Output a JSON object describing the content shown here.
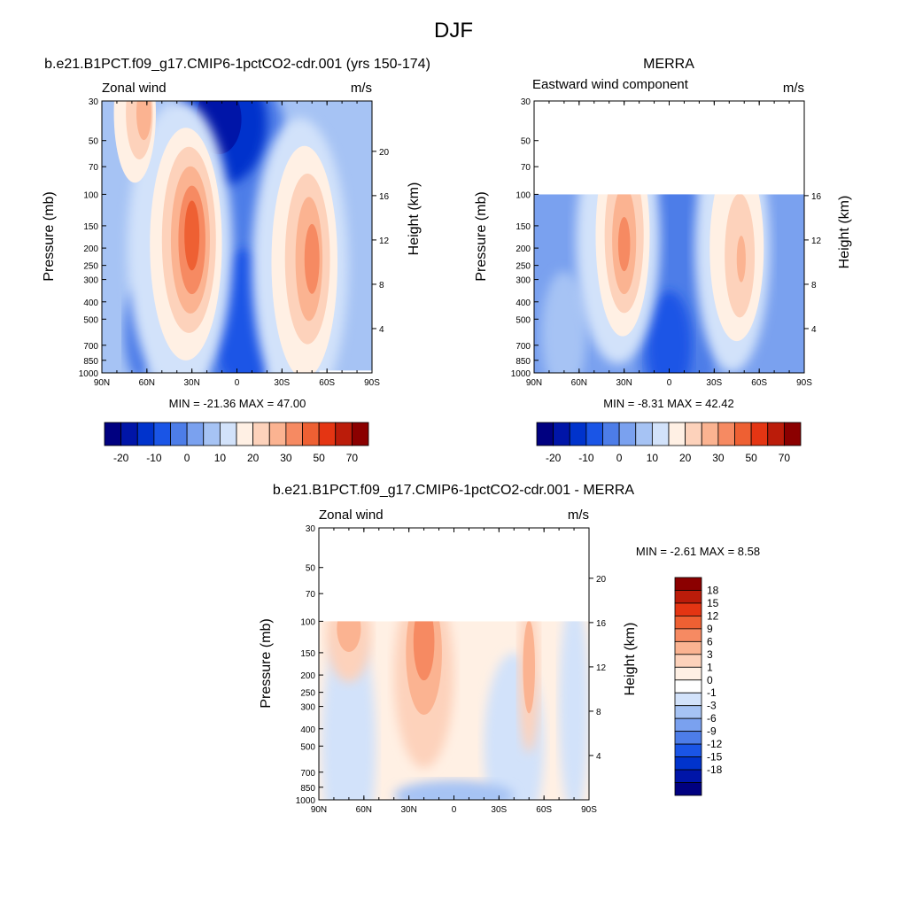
{
  "page_title": "DJF",
  "colors": {
    "model_levels": [
      "#000080",
      "#0015a8",
      "#0033cc",
      "#1a55e6",
      "#4d7de8",
      "#7aa1ef",
      "#a6c3f4",
      "#d2e2fa",
      "#fff0e4",
      "#fdd2bb",
      "#fbb391",
      "#f68a62",
      "#ee6033",
      "#e43513",
      "#bb1c0a",
      "#8b0000"
    ],
    "diff_levels": [
      "#000080",
      "#0015a8",
      "#0033cc",
      "#1a55e6",
      "#4d7de8",
      "#7aa1ef",
      "#a6c3f4",
      "#d2e2fa",
      "#ffffff",
      "#fff0e4",
      "#fdd2bb",
      "#fbb391",
      "#f68a62",
      "#ee6033",
      "#e43513",
      "#bb1c0a",
      "#8b0000"
    ]
  },
  "chart_data": [
    {
      "type": "heatmap",
      "title": "b.e21.B1PCT.f09_g17.CMIP6-1pctCO2-cdr.001 (yrs 150-174)",
      "left_string": "Zonal wind",
      "right_string": "m/s",
      "ylabel": "Pressure (mb)",
      "y2label": "Height (km)",
      "xticks": [
        "90N",
        "60N",
        "30N",
        "0",
        "30S",
        "60S",
        "90S"
      ],
      "yticks": [
        "30",
        "50",
        "70",
        "100",
        "150",
        "200",
        "250",
        "300",
        "400",
        "500",
        "700",
        "850",
        "1000"
      ],
      "y2ticks": [
        "20",
        "16",
        "12",
        "8",
        "4"
      ],
      "ylim": [
        1000,
        30
      ],
      "data_top_mb": 30,
      "min_max_text": "MIN = -21.36  MAX =  47.00",
      "min": -21.36,
      "max": 47.0,
      "colorbar_labels": [
        "-20",
        "-10",
        "0",
        "10",
        "20",
        "30",
        "50",
        "70"
      ]
    },
    {
      "type": "heatmap",
      "title": "MERRA",
      "left_string": "Eastward wind component",
      "right_string": "m/s",
      "ylabel": "Pressure (mb)",
      "y2label": "Height (km)",
      "xticks": [
        "90N",
        "60N",
        "30N",
        "0",
        "30S",
        "60S",
        "90S"
      ],
      "yticks": [
        "30",
        "50",
        "70",
        "100",
        "150",
        "200",
        "250",
        "300",
        "400",
        "500",
        "700",
        "850",
        "1000"
      ],
      "y2ticks": [
        "16",
        "12",
        "8",
        "4"
      ],
      "ylim": [
        1000,
        30
      ],
      "data_top_mb": 100,
      "min_max_text": "MIN =  -8.31  MAX =  42.42",
      "min": -8.31,
      "max": 42.42,
      "colorbar_labels": [
        "-20",
        "-10",
        "0",
        "10",
        "20",
        "30",
        "50",
        "70"
      ]
    },
    {
      "type": "heatmap",
      "title": "b.e21.B1PCT.f09_g17.CMIP6-1pctCO2-cdr.001 - MERRA",
      "left_string": "Zonal wind",
      "right_string": "m/s",
      "ylabel": "Pressure (mb)",
      "y2label": "Height (km)",
      "xticks": [
        "90N",
        "60N",
        "30N",
        "0",
        "30S",
        "60S",
        "90S"
      ],
      "yticks": [
        "30",
        "50",
        "70",
        "100",
        "150",
        "200",
        "250",
        "300",
        "400",
        "500",
        "700",
        "850",
        "1000"
      ],
      "y2ticks": [
        "20",
        "16",
        "12",
        "8",
        "4"
      ],
      "ylim": [
        1000,
        30
      ],
      "data_top_mb": 100,
      "min_max_text": "MIN =  -2.61  MAX =   8.58",
      "min": -2.61,
      "max": 8.58,
      "colorbar_labels": [
        "18",
        "15",
        "12",
        "9",
        "6",
        "3",
        "1",
        "0",
        "-1",
        "-3",
        "-6",
        "-9",
        "-12",
        "-15",
        "-18"
      ]
    }
  ]
}
